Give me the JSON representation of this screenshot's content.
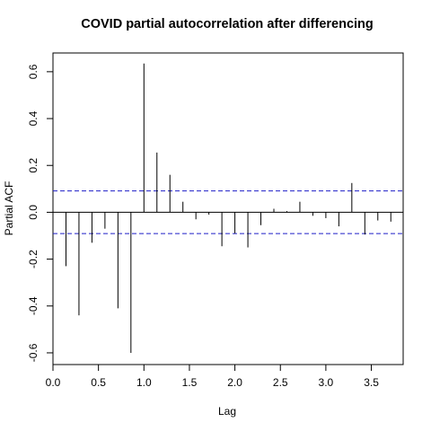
{
  "chart_data": {
    "type": "bar",
    "title": "COVID partial autocorrelation after differencing",
    "xlabel": "Lag",
    "ylabel": "Partial ACF",
    "xlim": [
      0,
      3.85
    ],
    "ylim": [
      -0.65,
      0.68
    ],
    "xticks": [
      "0.0",
      "0.5",
      "1.0",
      "1.5",
      "2.0",
      "2.5",
      "3.0",
      "3.5"
    ],
    "yticks": [
      "-0.6",
      "-0.4",
      "-0.2",
      "0.0",
      "0.2",
      "0.4",
      "0.6"
    ],
    "confidence_bound": 0.091,
    "grid": false,
    "x": [
      0.1429,
      0.2857,
      0.4286,
      0.5714,
      0.7143,
      0.8571,
      1.0,
      1.1429,
      1.2857,
      1.4286,
      1.5714,
      1.7143,
      1.8571,
      2.0,
      2.1429,
      2.2857,
      2.4286,
      2.5714,
      2.7143,
      2.8571,
      3.0,
      3.1429,
      3.2857,
      3.4286,
      3.5714,
      3.7143
    ],
    "values": [
      -0.23,
      -0.44,
      -0.13,
      -0.07,
      -0.41,
      -0.6,
      0.635,
      0.255,
      0.16,
      0.045,
      -0.03,
      -0.01,
      -0.145,
      -0.09,
      -0.15,
      -0.055,
      0.015,
      0.005,
      0.045,
      -0.015,
      -0.025,
      -0.06,
      0.125,
      -0.095,
      -0.035,
      -0.04
    ]
  }
}
